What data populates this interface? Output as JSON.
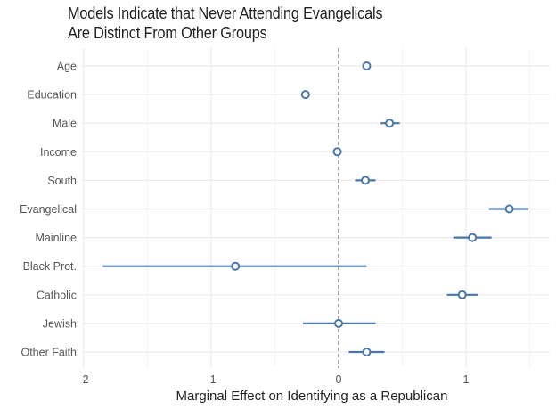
{
  "chart_data": {
    "type": "scatter",
    "subtype": "coefficient-plot",
    "title_lines": [
      "Models Indicate that Never Attending Evangelicals",
      "Are Distinct From Other Groups"
    ],
    "xlabel": "Marginal Effect on Identifying as a Republican",
    "ylabel": "",
    "xlim": [
      -2.0,
      1.66
    ],
    "xticks": [
      -2,
      -1,
      0,
      1
    ],
    "xtick_labels": [
      "-2",
      "-1",
      "0",
      "1"
    ],
    "minor_xticks": [
      -1.5,
      -0.5,
      0.5,
      1.5
    ],
    "reference_line": {
      "x": 0,
      "style": "dashed",
      "color": "#777777"
    },
    "grid": true,
    "color": "#4a76a8",
    "categories": [
      "Age",
      "Education",
      "Male",
      "Income",
      "South",
      "Evangelical",
      "Mainline",
      "Black Prot.",
      "Catholic",
      "Jewish",
      "Other Faith"
    ],
    "series": [
      {
        "name": "estimate",
        "points": [
          {
            "label": "Age",
            "estimate": 0.22,
            "lower": 0.2,
            "upper": 0.24
          },
          {
            "label": "Education",
            "estimate": -0.26,
            "lower": -0.28,
            "upper": -0.24
          },
          {
            "label": "Male",
            "estimate": 0.4,
            "lower": 0.33,
            "upper": 0.48
          },
          {
            "label": "Income",
            "estimate": -0.01,
            "lower": -0.03,
            "upper": 0.01
          },
          {
            "label": "South",
            "estimate": 0.21,
            "lower": 0.13,
            "upper": 0.29
          },
          {
            "label": "Evangelical",
            "estimate": 1.34,
            "lower": 1.18,
            "upper": 1.49
          },
          {
            "label": "Mainline",
            "estimate": 1.05,
            "lower": 0.9,
            "upper": 1.2
          },
          {
            "label": "Black Prot.",
            "estimate": -0.81,
            "lower": -1.85,
            "upper": 0.22
          },
          {
            "label": "Catholic",
            "estimate": 0.97,
            "lower": 0.85,
            "upper": 1.09
          },
          {
            "label": "Jewish",
            "estimate": 0.0,
            "lower": -0.28,
            "upper": 0.29
          },
          {
            "label": "Other Faith",
            "estimate": 0.22,
            "lower": 0.08,
            "upper": 0.36
          }
        ]
      }
    ]
  }
}
